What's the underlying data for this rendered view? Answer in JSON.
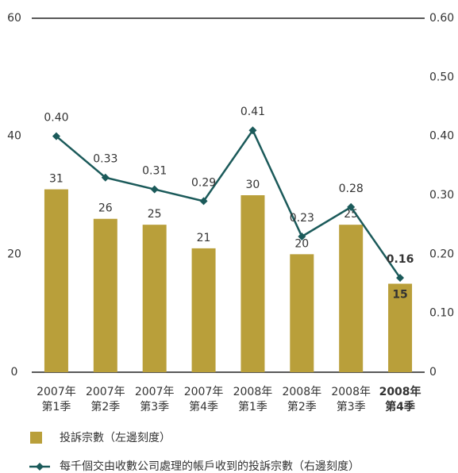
{
  "chart_data": {
    "type": "bar_line",
    "categories": [
      [
        "2007年",
        "第1季"
      ],
      [
        "2007年",
        "第2季"
      ],
      [
        "2007年",
        "第3季"
      ],
      [
        "2007年",
        "第4季"
      ],
      [
        "2008年",
        "第1季"
      ],
      [
        "2008年",
        "第2季"
      ],
      [
        "2008年",
        "第3季"
      ],
      [
        "2008年",
        "第4季"
      ]
    ],
    "series": [
      {
        "name": "投訴宗數（左邊刻度）",
        "color": "#b99f3a",
        "type": "bar",
        "values": [
          31,
          26,
          25,
          21,
          30,
          20,
          25,
          15
        ]
      },
      {
        "name": "每千個交由收數公司處理的帳戶收到的投訴宗數（右邊刻度）",
        "color": "#1b5a5a",
        "type": "line",
        "axis": "y2",
        "values": [
          0.4,
          0.33,
          0.31,
          0.29,
          0.41,
          0.23,
          0.28,
          0.16
        ],
        "value_labels": [
          "0.40",
          "0.33",
          "0.31",
          "0.29",
          "0.41",
          "0.23",
          "0.28",
          "0.16"
        ]
      }
    ],
    "ylim": [
      0,
      60
    ],
    "yticks": [
      0,
      20,
      40,
      60
    ],
    "y2lim": [
      0,
      0.6
    ],
    "y2ticks": [
      0,
      {
        "value": 0.1,
        "label": "0.10"
      },
      {
        "value": 0.2,
        "label": "0.20"
      },
      {
        "value": 0.3,
        "label": "0.30"
      },
      {
        "value": 0.4,
        "label": "0.40"
      },
      {
        "value": 0.5,
        "label": "0.50"
      },
      {
        "value": 0.6,
        "label": "0.60"
      }
    ]
  }
}
